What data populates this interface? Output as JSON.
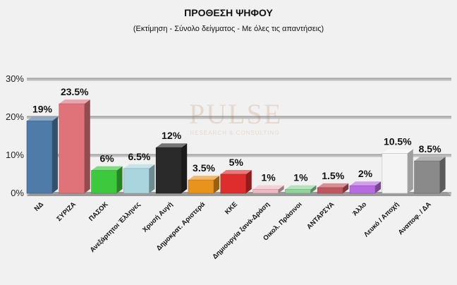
{
  "chart_data": {
    "type": "bar",
    "title": "ΠΡΟΘΕΣΗ ΨΗΦΟΥ",
    "subtitle": "(Εκτίμηση - Σύνολο δείγματος - Με όλες τις απαντήσεις)",
    "categories": [
      "ΝΔ",
      "ΣΥΡΙΖΑ",
      "ΠΑΣΟΚ",
      "Ανεξάρτητοι Έλληνες",
      "Χρυσή Αυγή",
      "Δημοκρατ. Αριστερά",
      "ΚΚΕ",
      "Δημιουργία ξανά-Δράση",
      "Οικολ. Πράσινοι",
      "ΑΝΤΑΡΣΥΑ",
      "Άλλο",
      "Λευκό / Αποχή",
      "Αναποφ. / ΔΑ"
    ],
    "values": [
      19,
      23.5,
      6,
      6.5,
      12,
      3.5,
      5,
      1,
      1,
      1.5,
      2,
      10.5,
      8.5
    ],
    "value_labels": [
      "19%",
      "23.5%",
      "6%",
      "6.5%",
      "12%",
      "3.5%",
      "5%",
      "1%",
      "1%",
      "1.5%",
      "2%",
      "10.5%",
      "8.5%"
    ],
    "colors": [
      "#4f7ba8",
      "#e0737a",
      "#3dc93d",
      "#a9d6de",
      "#2a2a2a",
      "#e8941c",
      "#de2d2d",
      "#f0b8c2",
      "#8fd49a",
      "#c2565e",
      "#b86be0",
      "#f4f4f4",
      "#8a8a8a"
    ],
    "ylim": [
      0,
      30
    ],
    "yticks": [
      "0%",
      "10%",
      "20%",
      "30%"
    ],
    "ytick_values": [
      0,
      10,
      20,
      30
    ],
    "grid": true,
    "legend": "none"
  },
  "watermark": {
    "word": "PULSE",
    "tagline": "RESEARCH & CONSULTING"
  }
}
